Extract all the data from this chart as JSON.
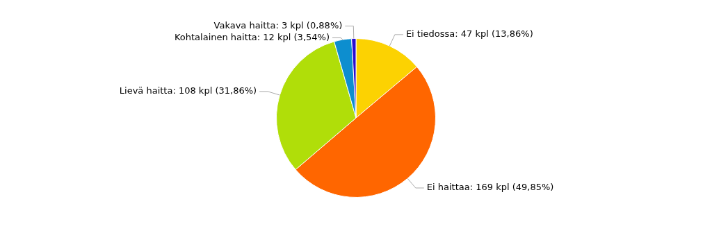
{
  "chart_data": {
    "type": "pie",
    "categories": [
      "Ei tiedossa: 47 kpl (13,86%)",
      "Ei haittaa: 169 kpl (49,85%)",
      "Lievä haitta: 108 kpl (31,86%)",
      "Kohtalainen haitta: 12 kpl (3,54%)",
      "Vakava haitta: 3 kpl (0,88%)"
    ],
    "values": [
      47,
      169,
      108,
      12,
      3
    ],
    "colors": [
      "#fcd202",
      "#ff6600",
      "#b0de09",
      "#0d8ecf",
      "#2a0cd0"
    ],
    "legend": false
  }
}
